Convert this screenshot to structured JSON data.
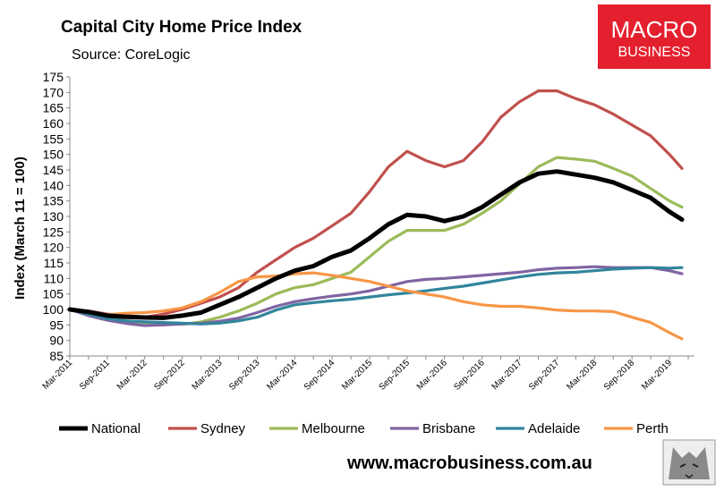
{
  "header": {
    "title": "Capital City Home Price Index",
    "subtitle": "Source: CoreLogic"
  },
  "logo": {
    "line1": "MACRO",
    "line2": "BUSINESS",
    "background": "#e5202e"
  },
  "footer": {
    "url": "www.macrobusiness.com.au"
  },
  "chart_data": {
    "type": "line",
    "title": "Capital City Home Price Index",
    "ylabel": "Index (March 11 = 100)",
    "ylim": [
      85,
      175
    ],
    "yticks": [
      85,
      90,
      95,
      100,
      105,
      110,
      115,
      120,
      125,
      130,
      135,
      140,
      145,
      150,
      155,
      160,
      165,
      170,
      175
    ],
    "x": [
      "2011-03",
      "2011-06",
      "2011-09",
      "2011-12",
      "2012-03",
      "2012-06",
      "2012-09",
      "2012-12",
      "2013-03",
      "2013-06",
      "2013-09",
      "2013-12",
      "2014-03",
      "2014-06",
      "2014-09",
      "2014-12",
      "2015-03",
      "2015-06",
      "2015-09",
      "2015-12",
      "2016-03",
      "2016-06",
      "2016-09",
      "2016-12",
      "2017-03",
      "2017-06",
      "2017-09",
      "2017-12",
      "2018-03",
      "2018-06",
      "2018-09",
      "2018-12",
      "2019-03",
      "2019-05"
    ],
    "xticks": [
      "Mar-2011",
      "Sep-2011",
      "Mar-2012",
      "Sep-2012",
      "Mar-2013",
      "Sep-2013",
      "Mar-2014",
      "Sep-2014",
      "Mar-2015",
      "Sep-2015",
      "Mar-2016",
      "Sep-2016",
      "Mar-2017",
      "Sep-2017",
      "Mar-2018",
      "Sep-2018",
      "Mar-2019"
    ],
    "grid": false,
    "legend_position": "bottom",
    "series": [
      {
        "name": "National",
        "color": "#000000",
        "width": 5,
        "values": [
          100,
          99.2,
          98,
          97.6,
          97.4,
          97.3,
          98,
          99,
          101.5,
          104,
          107,
          110,
          112.5,
          114,
          117,
          119,
          123,
          127.5,
          130.5,
          130,
          128.5,
          130,
          133,
          137,
          141,
          143.8,
          144.5,
          143.5,
          142.5,
          141,
          138.5,
          136,
          131.5,
          129
        ]
      },
      {
        "name": "Sydney",
        "color": "#c0504d",
        "width": 3.2,
        "values": [
          100,
          99.5,
          98.5,
          98,
          97.5,
          98.5,
          100,
          102,
          104,
          107,
          112,
          116,
          120,
          123,
          127,
          131,
          138,
          146,
          151,
          148,
          146,
          148,
          154,
          162,
          167,
          170.5,
          170.5,
          168,
          166,
          163,
          159.5,
          156,
          150,
          145.5
        ]
      },
      {
        "name": "Melbourne",
        "color": "#9bbb59",
        "width": 3.2,
        "values": [
          100,
          99,
          97.5,
          96.3,
          95.8,
          95.5,
          95.2,
          96,
          97.5,
          99.5,
          102,
          105,
          107,
          108,
          110,
          112,
          117,
          122,
          125.5,
          125.5,
          125.5,
          127.5,
          131,
          135,
          140.5,
          146,
          149,
          148.5,
          147.8,
          145.5,
          143,
          139,
          135,
          133
        ]
      },
      {
        "name": "Brisbane",
        "color": "#8064a2",
        "width": 3.2,
        "values": [
          100,
          98,
          96.5,
          95.5,
          94.8,
          95,
          95.3,
          95.6,
          96.2,
          97.2,
          99,
          101,
          102.5,
          103.5,
          104.3,
          105,
          106,
          107.5,
          109,
          109.7,
          110,
          110.5,
          111,
          111.5,
          112,
          112.8,
          113.3,
          113.5,
          113.8,
          113.5,
          113.5,
          113.5,
          112.5,
          111.5
        ]
      },
      {
        "name": "Adelaide",
        "color": "#31859c",
        "width": 3.2,
        "values": [
          100,
          98.5,
          97,
          96.3,
          96,
          95.8,
          95.6,
          95.3,
          95.6,
          96.3,
          97.5,
          99.8,
          101.5,
          102.2,
          102.8,
          103.3,
          104,
          104.7,
          105.3,
          106,
          106.8,
          107.5,
          108.5,
          109.5,
          110.5,
          111.3,
          111.8,
          112,
          112.5,
          113,
          113.3,
          113.5,
          113.3,
          113.5
        ]
      },
      {
        "name": "Perth",
        "color": "#f79646",
        "width": 3.2,
        "values": [
          100,
          99.3,
          98.3,
          98.8,
          99,
          99.5,
          100.5,
          102.5,
          105.5,
          109,
          110.5,
          110.8,
          111.5,
          111.8,
          111,
          110,
          109,
          107.5,
          106,
          105,
          104,
          102.5,
          101.5,
          101,
          101,
          100.5,
          99.8,
          99.5,
          99.5,
          99.3,
          97.5,
          95.8,
          92.5,
          90.5
        ]
      }
    ]
  }
}
